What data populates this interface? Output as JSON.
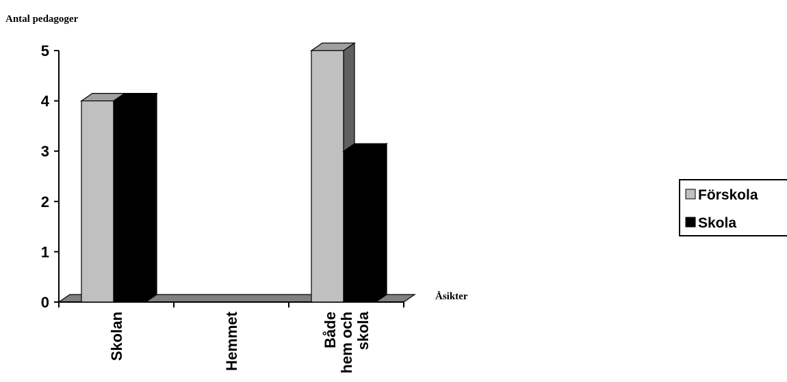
{
  "chart_data": {
    "type": "bar",
    "title": "",
    "ylabel": "Antal pedagoger",
    "xlabel": "Åsikter",
    "categories": [
      "Skolan",
      "Hemmet",
      "Både hem och skola"
    ],
    "category_label_lines": [
      [
        "Skolan"
      ],
      [
        "Hemmet"
      ],
      [
        "Både",
        "hem och",
        "skola"
      ]
    ],
    "series": [
      {
        "name": "Förskola",
        "values": [
          4,
          0,
          5
        ],
        "color": "#c0c0c0"
      },
      {
        "name": "Skola",
        "values": [
          4,
          0,
          3
        ],
        "color": "#000000"
      }
    ],
    "ylim": [
      0,
      5
    ],
    "yticks": [
      "0",
      "1",
      "2",
      "3",
      "4",
      "5"
    ],
    "grid": false,
    "legend": "right",
    "style": "3d-clustered-column"
  }
}
